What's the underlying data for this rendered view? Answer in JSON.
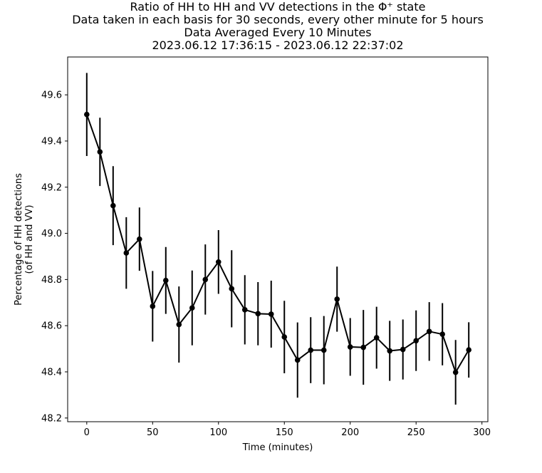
{
  "chart_data": {
    "type": "line",
    "title": [
      "Ratio of HH to HH and VV detections in the Φ⁺ state",
      "Data taken in each basis for 30 seconds, every other minute for 5 hours",
      "Data Averaged Every 10 Minutes",
      "2023.06.12 17:36:15 - 2023.06.12 22:37:02"
    ],
    "xlabel": "Time (minutes)",
    "ylabel": [
      "Percentage of HH detections",
      "(of HH and VV)"
    ],
    "xlim": [
      -14.5,
      304.5
    ],
    "ylim": [
      48.184,
      49.764
    ],
    "xticks": [
      0,
      50,
      100,
      150,
      200,
      250,
      300
    ],
    "yticks": [
      48.2,
      48.4,
      48.6,
      48.8,
      49.0,
      49.2,
      49.4,
      49.6
    ],
    "grid": false,
    "series": [
      {
        "color": "#000000",
        "marker": "circle",
        "x": [
          0,
          10,
          20,
          30,
          40,
          50,
          60,
          70,
          80,
          90,
          100,
          110,
          120,
          130,
          140,
          150,
          160,
          170,
          180,
          190,
          200,
          210,
          220,
          230,
          240,
          250,
          260,
          270,
          280,
          290
        ],
        "y": [
          49.515,
          49.353,
          49.12,
          48.915,
          48.975,
          48.684,
          48.796,
          48.605,
          48.677,
          48.8,
          48.876,
          48.76,
          48.669,
          48.652,
          48.65,
          48.551,
          48.451,
          48.494,
          48.494,
          48.715,
          48.508,
          48.506,
          48.548,
          48.491,
          48.497,
          48.535,
          48.575,
          48.563,
          48.398,
          48.495
        ],
        "yerr": [
          0.18,
          0.148,
          0.171,
          0.155,
          0.137,
          0.153,
          0.145,
          0.165,
          0.162,
          0.152,
          0.138,
          0.167,
          0.15,
          0.137,
          0.145,
          0.157,
          0.163,
          0.143,
          0.148,
          0.141,
          0.125,
          0.162,
          0.134,
          0.13,
          0.13,
          0.131,
          0.127,
          0.135,
          0.14,
          0.12
        ]
      }
    ]
  }
}
